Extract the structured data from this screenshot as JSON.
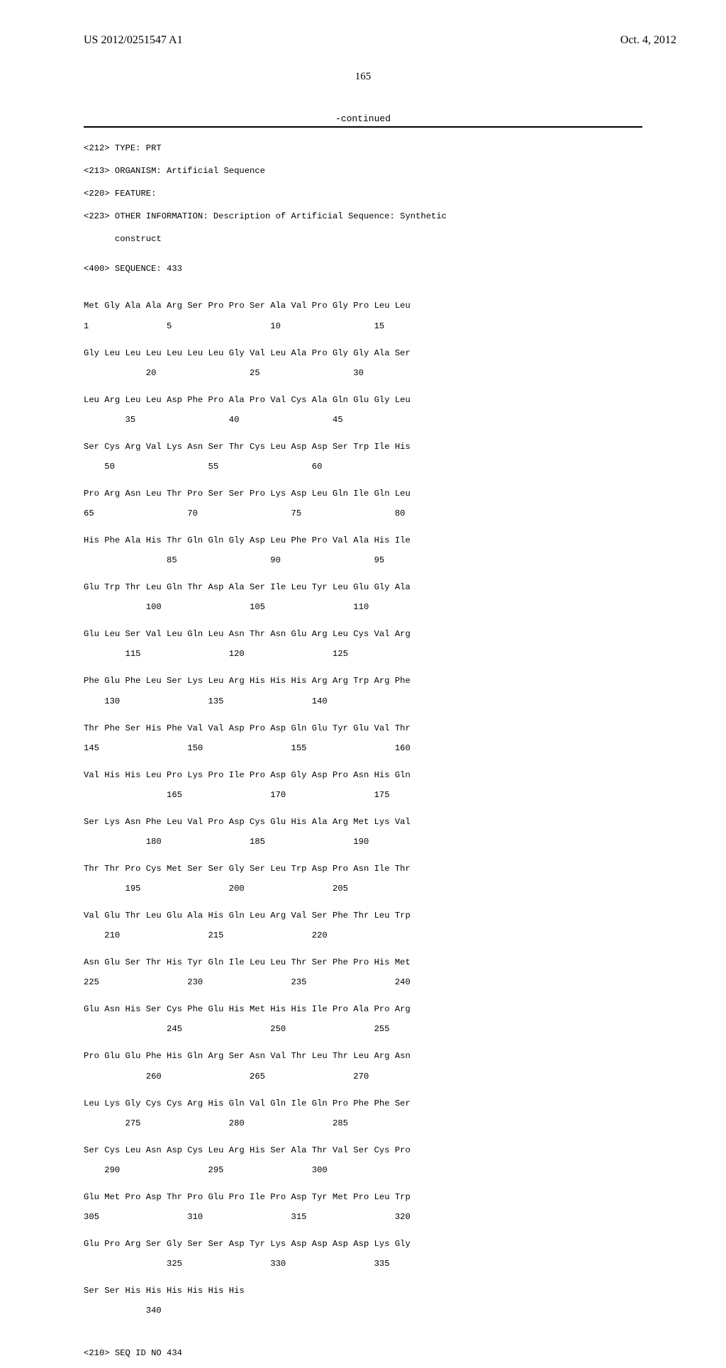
{
  "header": {
    "pub_number": "US 2012/0251547 A1",
    "date": "Oct. 4, 2012"
  },
  "pagenum": "165",
  "continued": "-continued",
  "meta": {
    "l1": "<212> TYPE: PRT",
    "l2": "<213> ORGANISM: Artificial Sequence",
    "l3": "<220> FEATURE:",
    "l4": "<223> OTHER INFORMATION: Description of Artificial Sequence: Synthetic",
    "l5": "      construct",
    "l6": "<400> SEQUENCE: 433"
  },
  "rows": [
    {
      "aa": "Met Gly Ala Ala Arg Ser Pro Pro Ser Ala Val Pro Gly Pro Leu Leu",
      "nm": "1               5                   10                  15"
    },
    {
      "aa": "Gly Leu Leu Leu Leu Leu Leu Gly Val Leu Ala Pro Gly Gly Ala Ser",
      "nm": "            20                  25                  30"
    },
    {
      "aa": "Leu Arg Leu Leu Asp Phe Pro Ala Pro Val Cys Ala Gln Glu Gly Leu",
      "nm": "        35                  40                  45"
    },
    {
      "aa": "Ser Cys Arg Val Lys Asn Ser Thr Cys Leu Asp Asp Ser Trp Ile His",
      "nm": "    50                  55                  60"
    },
    {
      "aa": "Pro Arg Asn Leu Thr Pro Ser Ser Pro Lys Asp Leu Gln Ile Gln Leu",
      "nm": "65                  70                  75                  80"
    },
    {
      "aa": "His Phe Ala His Thr Gln Gln Gly Asp Leu Phe Pro Val Ala His Ile",
      "nm": "                85                  90                  95"
    },
    {
      "aa": "Glu Trp Thr Leu Gln Thr Asp Ala Ser Ile Leu Tyr Leu Glu Gly Ala",
      "nm": "            100                 105                 110"
    },
    {
      "aa": "Glu Leu Ser Val Leu Gln Leu Asn Thr Asn Glu Arg Leu Cys Val Arg",
      "nm": "        115                 120                 125"
    },
    {
      "aa": "Phe Glu Phe Leu Ser Lys Leu Arg His His His Arg Arg Trp Arg Phe",
      "nm": "    130                 135                 140"
    },
    {
      "aa": "Thr Phe Ser His Phe Val Val Asp Pro Asp Gln Glu Tyr Glu Val Thr",
      "nm": "145                 150                 155                 160"
    },
    {
      "aa": "Val His His Leu Pro Lys Pro Ile Pro Asp Gly Asp Pro Asn His Gln",
      "nm": "                165                 170                 175"
    },
    {
      "aa": "Ser Lys Asn Phe Leu Val Pro Asp Cys Glu His Ala Arg Met Lys Val",
      "nm": "            180                 185                 190"
    },
    {
      "aa": "Thr Thr Pro Cys Met Ser Ser Gly Ser Leu Trp Asp Pro Asn Ile Thr",
      "nm": "        195                 200                 205"
    },
    {
      "aa": "Val Glu Thr Leu Glu Ala His Gln Leu Arg Val Ser Phe Thr Leu Trp",
      "nm": "    210                 215                 220"
    },
    {
      "aa": "Asn Glu Ser Thr His Tyr Gln Ile Leu Leu Thr Ser Phe Pro His Met",
      "nm": "225                 230                 235                 240"
    },
    {
      "aa": "Glu Asn His Ser Cys Phe Glu His Met His His Ile Pro Ala Pro Arg",
      "nm": "                245                 250                 255"
    },
    {
      "aa": "Pro Glu Glu Phe His Gln Arg Ser Asn Val Thr Leu Thr Leu Arg Asn",
      "nm": "            260                 265                 270"
    },
    {
      "aa": "Leu Lys Gly Cys Cys Arg His Gln Val Gln Ile Gln Pro Phe Phe Ser",
      "nm": "        275                 280                 285"
    },
    {
      "aa": "Ser Cys Leu Asn Asp Cys Leu Arg His Ser Ala Thr Val Ser Cys Pro",
      "nm": "    290                 295                 300"
    },
    {
      "aa": "Glu Met Pro Asp Thr Pro Glu Pro Ile Pro Asp Tyr Met Pro Leu Trp",
      "nm": "305                 310                 315                 320"
    },
    {
      "aa": "Glu Pro Arg Ser Gly Ser Ser Asp Tyr Lys Asp Asp Asp Asp Lys Gly",
      "nm": "                325                 330                 335"
    },
    {
      "aa": "Ser Ser His His His His His His",
      "nm": "            340"
    }
  ],
  "footer": "<210> SEQ ID NO 434"
}
